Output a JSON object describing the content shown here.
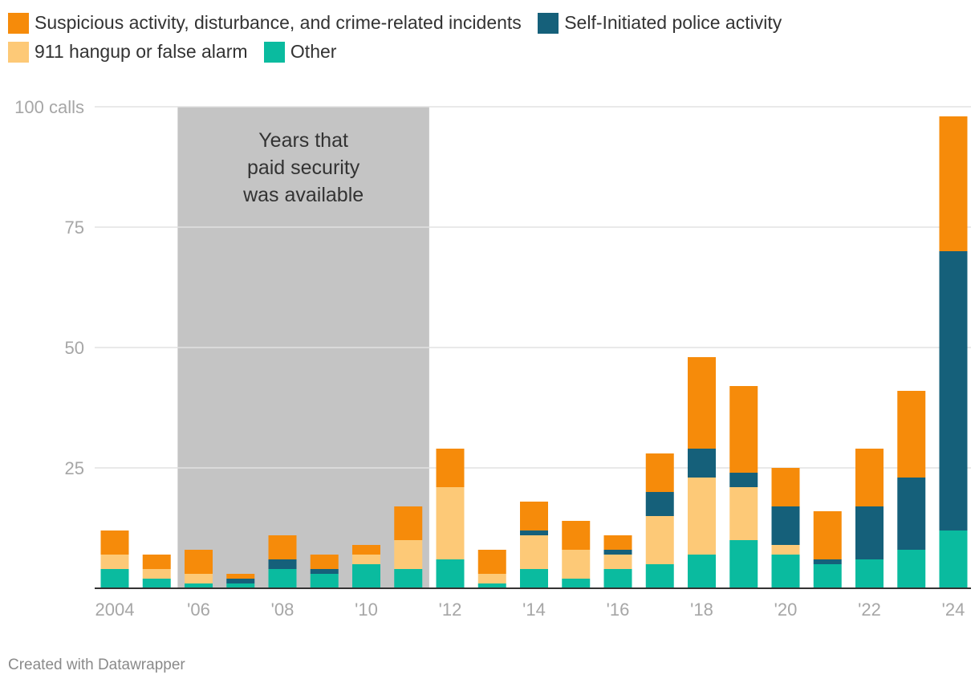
{
  "chart_data": {
    "type": "bar",
    "stacked": true,
    "x_tick_labels": [
      "2004",
      "'06",
      "'08",
      "'10",
      "'12",
      "'14",
      "'16",
      "'18",
      "'20",
      "'22",
      "'24"
    ],
    "y_tick_labels": [
      "100 calls",
      "75",
      "50",
      "25"
    ],
    "ylim": [
      0,
      100
    ],
    "yticks": [
      25,
      50,
      75,
      100
    ],
    "grid": true,
    "legend_position": "top",
    "categories": [
      2004,
      2005,
      2006,
      2007,
      2008,
      2009,
      2010,
      2011,
      2012,
      2013,
      2014,
      2015,
      2016,
      2017,
      2018,
      2019,
      2020,
      2021,
      2022,
      2023,
      2024
    ],
    "series": [
      {
        "name": "Other",
        "color": "#0abb9f",
        "values": [
          4,
          2,
          1,
          1,
          4,
          3,
          5,
          4,
          6,
          1,
          4,
          2,
          4,
          5,
          7,
          10,
          7,
          5,
          6,
          8,
          12
        ]
      },
      {
        "name": "911 hangup or false alarm",
        "color": "#fdc977",
        "values": [
          3,
          2,
          2,
          0,
          0,
          0,
          2,
          6,
          15,
          2,
          7,
          6,
          3,
          10,
          16,
          11,
          2,
          0,
          0,
          0,
          0
        ]
      },
      {
        "name": "Self-Initiated police activity",
        "color": "#15607a",
        "values": [
          0,
          0,
          0,
          1,
          2,
          1,
          0,
          0,
          0,
          0,
          1,
          0,
          1,
          5,
          6,
          3,
          8,
          1,
          11,
          15,
          58
        ]
      },
      {
        "name": "Suspicious activity, disturbance, and crime-related incidents",
        "color": "#f68b0a",
        "values": [
          5,
          3,
          5,
          1,
          5,
          3,
          2,
          7,
          8,
          5,
          6,
          6,
          3,
          8,
          19,
          18,
          8,
          10,
          12,
          18,
          28
        ]
      }
    ],
    "annotation": {
      "text_lines": [
        "Years that",
        "paid security",
        "was available"
      ],
      "x_start": 2005.5,
      "x_end": 2011.5,
      "color": "#c4c4c4"
    }
  },
  "legend": [
    {
      "label": "Suspicious activity, disturbance, and crime-related incidents",
      "color": "#f68b0a"
    },
    {
      "label": "Self-Initiated police activity",
      "color": "#15607a"
    },
    {
      "label": "911 hangup or false alarm",
      "color": "#fdc977"
    },
    {
      "label": "Other",
      "color": "#0abb9f"
    }
  ],
  "credit": "Created with Datawrapper"
}
